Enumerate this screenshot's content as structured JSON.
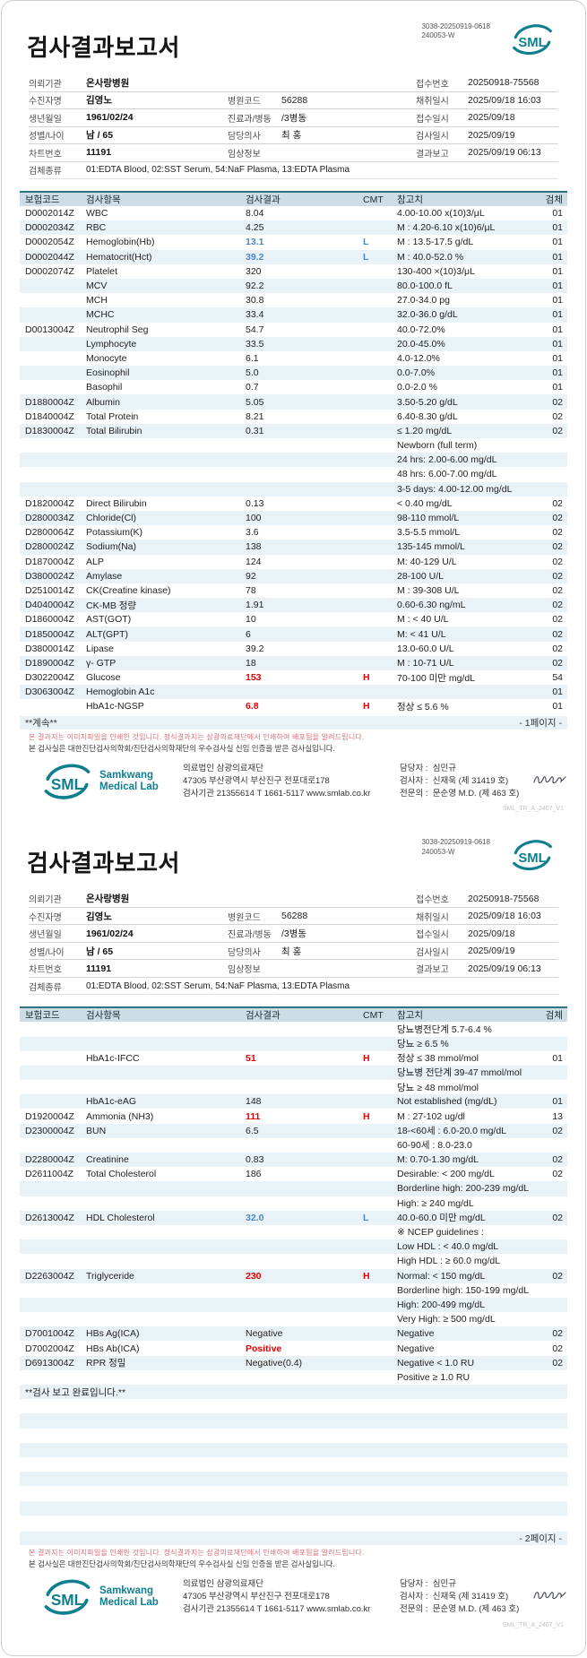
{
  "colors": {
    "teal": "#0f7e8e",
    "header_band": "#ccdde6",
    "row_shade": "#e9f2f6",
    "high": "#e60000",
    "low": "#4f86c6",
    "disclaimer_red": "#d9707a"
  },
  "doc": {
    "title": "검사결과보고서",
    "doc_no_line1": "3038-20250919-0618",
    "doc_no_line2": "240053-W",
    "logo_text": "SML",
    "logo_name_line1": "Samkwang",
    "logo_name_line2": "Medical Lab"
  },
  "patient": {
    "rows": [
      [
        "의뢰기관",
        "온사랑병원",
        "",
        "",
        "접수번호",
        "20250918-75568"
      ],
      [
        "수진자명",
        "김영노",
        "병원코드",
        "56288",
        "채취일시",
        "2025/09/18 16:03"
      ],
      [
        "생년월일",
        "1961/02/24",
        "진료과/병동",
        "/3병동",
        "접수일시",
        "2025/09/18"
      ],
      [
        "성별/나이",
        "남 / 65",
        "담당의사",
        "최 홍",
        "검사일시",
        "2025/09/19"
      ],
      [
        "차트번호",
        "11191",
        "임상정보",
        "",
        "결과보고",
        "2025/09/19 06:13"
      ]
    ],
    "specimen_label": "검체종류",
    "specimen_value": "01:EDTA Blood, 02:SST Serum, 54:NaF Plasma, 13:EDTA Plasma"
  },
  "table": {
    "headers": [
      "보험코드",
      "검사항목",
      "검사결과",
      "CMT",
      "참고치",
      "검체"
    ]
  },
  "page1": {
    "rows": [
      [
        "D0002014Z",
        "WBC",
        "8.04",
        "",
        "",
        "4.00-10.00 x(10)3/μL",
        "01"
      ],
      [
        "D0002034Z",
        "RBC",
        "4.25",
        "",
        "",
        "M : 4.20-6.10 x(10)6/μL",
        "01"
      ],
      [
        "D0002054Z",
        "Hemoglobin(Hb)",
        "13.1",
        "blue",
        "L",
        "M : 13.5-17.5 g/dL",
        "01"
      ],
      [
        "D0002044Z",
        "Hematocrit(Hct)",
        "39.2",
        "blue",
        "L",
        "M : 40.0-52.0 %",
        "01"
      ],
      [
        "D0002074Z",
        "Platelet",
        "320",
        "",
        "",
        "130-400 ×(10)3/μL",
        "01"
      ],
      [
        "",
        "MCV",
        "92.2",
        "",
        "",
        "80.0-100.0 fL",
        "01"
      ],
      [
        "",
        "MCH",
        "30.8",
        "",
        "",
        "27.0-34.0 pg",
        "01"
      ],
      [
        "",
        "MCHC",
        "33.4",
        "",
        "",
        "32.0-36.0 g/dL",
        "01"
      ],
      [
        "D0013004Z",
        "Neutrophil Seg",
        "54.7",
        "",
        "",
        "40.0-72.0%",
        "01"
      ],
      [
        "",
        "Lymphocyte",
        "33.5",
        "",
        "",
        "20.0-45.0%",
        "01"
      ],
      [
        "",
        "Monocyte",
        "6.1",
        "",
        "",
        "4.0-12.0%",
        "01"
      ],
      [
        "",
        "Eosinophil",
        "5.0",
        "",
        "",
        "0.0-7.0%",
        "01"
      ],
      [
        "",
        "Basophil",
        "0.7",
        "",
        "",
        "0.0-2.0 %",
        "01"
      ],
      [
        "D1880004Z",
        "Albumin",
        "5.05",
        "",
        "",
        "3.50-5.20 g/dL",
        "02"
      ],
      [
        "D1840004Z",
        "Total Protein",
        "8.21",
        "",
        "",
        "6.40-8.30 g/dL",
        "02"
      ],
      [
        "D1830004Z",
        "Total Bilirubin",
        "0.31",
        "",
        "",
        "≤ 1.20 mg/dL",
        "02"
      ],
      [
        "",
        "",
        "",
        "",
        "",
        "Newborn (full term)",
        ""
      ],
      [
        "",
        "",
        "",
        "",
        "",
        "24 hrs: 2.00-6.00 mg/dL",
        ""
      ],
      [
        "",
        "",
        "",
        "",
        "",
        "48 hrs: 6.00-7.00 mg/dL",
        ""
      ],
      [
        "",
        "",
        "",
        "",
        "",
        "3-5 days: 4.00-12.00 mg/dL",
        ""
      ],
      [
        "D1820004Z",
        "Direct Bilirubin",
        "0.13",
        "",
        "",
        "< 0.40 mg/dL",
        "02"
      ],
      [
        "D2800034Z",
        "Chloride(Cl)",
        "100",
        "",
        "",
        "98-110 mmol/L",
        "02"
      ],
      [
        "D2800064Z",
        "Potassium(K)",
        "3.6",
        "",
        "",
        "3.5-5.5 mmol/L",
        "02"
      ],
      [
        "D2800024Z",
        "Sodium(Na)",
        "138",
        "",
        "",
        "135-145 mmol/L",
        "02"
      ],
      [
        "D1870004Z",
        "ALP",
        "124",
        "",
        "",
        "M: 40-129 U/L",
        "02"
      ],
      [
        "D3800024Z",
        "Amylase",
        "92",
        "",
        "",
        "28-100 U/L",
        "02"
      ],
      [
        "D2510014Z",
        "CK(Creatine kinase)",
        "78",
        "",
        "",
        "M : 39-308 U/L",
        "02"
      ],
      [
        "D4040004Z",
        "CK-MB 정량",
        "1.91",
        "",
        "",
        "0.60-6.30 ng/mL",
        "02"
      ],
      [
        "D1860004Z",
        "AST(GOT)",
        "10",
        "",
        "",
        "M : < 40 U/L",
        "02"
      ],
      [
        "D1850004Z",
        "ALT(GPT)",
        "6",
        "",
        "",
        "M: < 41 U/L",
        "02"
      ],
      [
        "D3800014Z",
        "Lipase",
        "39.2",
        "",
        "",
        "13.0-60.0 U/L",
        "02"
      ],
      [
        "D1890004Z",
        "γ- GTP",
        "18",
        "",
        "",
        "M : 10-71 U/L",
        "02"
      ],
      [
        "D3022004Z",
        "Glucose",
        "153",
        "red",
        "H",
        "70-100 미만 mg/dL",
        "54"
      ],
      [
        "D3063004Z",
        "Hemoglobin A1c",
        "",
        "",
        "",
        "",
        "01"
      ],
      [
        "",
        "HbA1c-NGSP",
        "6.8",
        "red",
        "H",
        "정상 ≤ 5.6 %",
        "01"
      ]
    ],
    "footer_note_left": "**계속**",
    "page_marker": "- 1페이지 -"
  },
  "page2": {
    "rows": [
      [
        "",
        "",
        "",
        "",
        "",
        "당뇨병전단계 5.7-6.4 %",
        ""
      ],
      [
        "",
        "",
        "",
        "",
        "",
        "당뇨 ≥ 6.5 %",
        ""
      ],
      [
        "",
        "HbA1c-IFCC",
        "51",
        "red",
        "H",
        "정상 ≤ 38 mmol/mol",
        "01"
      ],
      [
        "",
        "",
        "",
        "",
        "",
        "당뇨병 전단계 39-47 mmol/mol",
        ""
      ],
      [
        "",
        "",
        "",
        "",
        "",
        "당뇨 ≥ 48 mmol/mol",
        ""
      ],
      [
        "",
        "HbA1c-eAG",
        "148",
        "",
        "",
        "Not established (mg/dL)",
        "01"
      ],
      [
        "D1920004Z",
        "Ammonia (NH3)",
        "111",
        "red",
        "H",
        "M : 27-102 ug/dl",
        "13"
      ],
      [
        "D2300004Z",
        "BUN",
        "6.5",
        "",
        "",
        "18-<60세 : 6.0-20.0 mg/dL",
        "02"
      ],
      [
        "",
        "",
        "",
        "",
        "",
        "60-90세 : 8.0-23.0",
        ""
      ],
      [
        "D2280004Z",
        "Creatinine",
        "0.83",
        "",
        "",
        "M: 0.70-1.30 mg/dL",
        "02"
      ],
      [
        "D2611004Z",
        "Total Cholesterol",
        "186",
        "",
        "",
        "Desirable: < 200 mg/dL",
        "02"
      ],
      [
        "",
        "",
        "",
        "",
        "",
        "Borderline high: 200-239 mg/dL",
        ""
      ],
      [
        "",
        "",
        "",
        "",
        "",
        "High: ≥ 240 mg/dL",
        ""
      ],
      [
        "D2613004Z",
        "HDL Cholesterol",
        "32.0",
        "blue",
        "L",
        "40.0-60.0 미만 mg/dL",
        "02"
      ],
      [
        "",
        "",
        "",
        "",
        "",
        "※ NCEP guidelines :",
        ""
      ],
      [
        "",
        "",
        "",
        "",
        "",
        "Low HDL : < 40.0 mg/dL",
        ""
      ],
      [
        "",
        "",
        "",
        "",
        "",
        "High HDL : ≥ 60.0 mg/dL",
        ""
      ],
      [
        "D2263004Z",
        "Triglyceride",
        "230",
        "red",
        "H",
        "Normal: < 150 mg/dL",
        "02"
      ],
      [
        "",
        "",
        "",
        "",
        "",
        "Borderline high: 150-199 mg/dL",
        ""
      ],
      [
        "",
        "",
        "",
        "",
        "",
        "High: 200-499 mg/dL",
        ""
      ],
      [
        "",
        "",
        "",
        "",
        "",
        "Very High: ≥ 500 mg/dL",
        ""
      ],
      [
        "D7001004Z",
        "HBs Ag(ICA)",
        "Negative",
        "",
        "",
        "Negative",
        "02"
      ],
      [
        "D7002004Z",
        "HBs Ab(ICA)",
        "Positive",
        "red",
        "",
        "Negative",
        "02"
      ],
      [
        "D6913004Z",
        "RPR 정밀",
        "Negative(0.4)",
        "",
        "",
        "Negative < 1.0 RU",
        "02"
      ],
      [
        "",
        "",
        "",
        "",
        "",
        "Positive ≥ 1.0 RU",
        ""
      ],
      [
        "**검사 보고 완료입니다.**",
        "",
        "",
        "",
        "",
        "",
        ""
      ],
      [
        "",
        "",
        "",
        "",
        "",
        "",
        ""
      ],
      [
        "",
        "",
        "",
        "",
        "",
        "",
        ""
      ],
      [
        "",
        "",
        "",
        "",
        "",
        "",
        ""
      ],
      [
        "",
        "",
        "",
        "",
        "",
        "",
        ""
      ],
      [
        "",
        "",
        "",
        "",
        "",
        "",
        ""
      ],
      [
        "",
        "",
        "",
        "",
        "",
        "",
        ""
      ],
      [
        "",
        "",
        "",
        "",
        "",
        "",
        ""
      ],
      [
        "",
        "",
        "",
        "",
        "",
        "",
        ""
      ],
      [
        "",
        "",
        "",
        "",
        "",
        "",
        ""
      ]
    ],
    "footer_note_left": "",
    "page_marker": "- 2페이지 -"
  },
  "disclaimer": {
    "line1": "본 결과지는 이미지파일을 인쇄한 것입니다. 정식결과지는 삼광의료재단에서 인쇄하여 배포됨을 알려드립니다.",
    "line2": "본 검사실은 대한진단검사의학회/진단검사의학재단의 우수검사실 신임 인증을 받은 검사실입니다."
  },
  "footer": {
    "org": "의료법인 삼광의료재단",
    "address": "47305 부산광역시 부산진구 전포대로178",
    "contact": "검사기관 21355614 T 1661-5117 www.smlab.co.kr",
    "manager_label": "담당자 :",
    "manager": "심민규",
    "examiner_label": "검사자 :",
    "examiner": "신재욱 (제 31419 호)",
    "specialist_label": "전문의 :",
    "specialist": "문순영 M.D. (제 463 호)",
    "version": "SML_TR_A_2407_V1"
  }
}
